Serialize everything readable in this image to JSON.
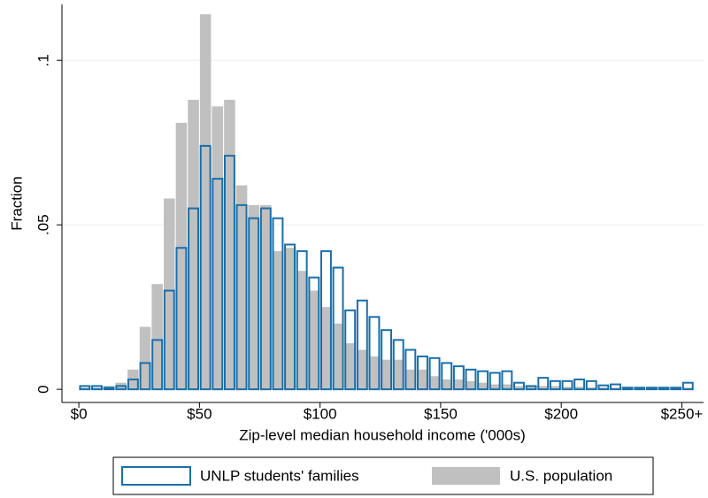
{
  "chart_data": {
    "type": "histogram",
    "x_label": "Zip-level median household income ('000s)",
    "y_label": "Fraction",
    "bins": [
      0,
      5,
      10,
      15,
      20,
      25,
      30,
      35,
      40,
      45,
      50,
      55,
      60,
      65,
      70,
      75,
      80,
      85,
      90,
      95,
      100,
      105,
      110,
      115,
      120,
      125,
      130,
      135,
      140,
      145,
      150,
      155,
      160,
      165,
      170,
      175,
      180,
      185,
      190,
      195,
      200,
      205,
      210,
      215,
      220,
      225,
      230,
      235,
      240,
      245,
      250,
      255
    ],
    "series": [
      {
        "name": "UNLP students' families",
        "color": "#1a6fa8",
        "style": "outline",
        "values": [
          0.001,
          0.001,
          0.0005,
          0.001,
          0.003,
          0.008,
          0.015,
          0.03,
          0.043,
          0.055,
          0.074,
          0.064,
          0.071,
          0.056,
          0.052,
          0.055,
          0.052,
          0.044,
          0.042,
          0.034,
          0.042,
          0.037,
          0.024,
          0.027,
          0.022,
          0.018,
          0.015,
          0.012,
          0.01,
          0.0095,
          0.008,
          0.007,
          0.006,
          0.0055,
          0.005,
          0.0055,
          0.002,
          0.001,
          0.0035,
          0.0025,
          0.0025,
          0.003,
          0.0025,
          0.0012,
          0.0015,
          0.0005,
          0.0005,
          0.0005,
          0.0005,
          0.0005,
          0.002
        ]
      },
      {
        "name": "U.S. population",
        "color": "#c0c0c0",
        "style": "filled",
        "values": [
          0.0005,
          0.0005,
          0.001,
          0.002,
          0.006,
          0.019,
          0.032,
          0.058,
          0.081,
          0.088,
          0.114,
          0.086,
          0.088,
          0.062,
          0.056,
          0.056,
          0.042,
          0.043,
          0.036,
          0.03,
          0.025,
          0.02,
          0.014,
          0.012,
          0.01,
          0.009,
          0.009,
          0.006,
          0.006,
          0.004,
          0.003,
          0.003,
          0.0025,
          0.002,
          0.0015,
          0.0015,
          0.001,
          0.001,
          0.001,
          0.001,
          0.0008,
          0.0008,
          0.0006,
          0.0006,
          0.0005,
          0.0005,
          0.0004,
          0.0004,
          0.0004,
          0.0003,
          0.0005
        ]
      }
    ],
    "xlim": [
      -7,
      259
    ],
    "ylim": [
      -0.004,
      0.117
    ],
    "xticks": [
      {
        "value": 0,
        "label": "$0"
      },
      {
        "value": 50,
        "label": "$50"
      },
      {
        "value": 100,
        "label": "$100"
      },
      {
        "value": 150,
        "label": "$150"
      },
      {
        "value": 200,
        "label": "$200"
      },
      {
        "value": 250,
        "label": "$250+"
      }
    ],
    "yticks": [
      0,
      {
        "value": 0.05,
        "label": ".05"
      },
      {
        "value": 0.1,
        "label": ".1"
      }
    ],
    "grid": true,
    "legend": "bottom"
  }
}
